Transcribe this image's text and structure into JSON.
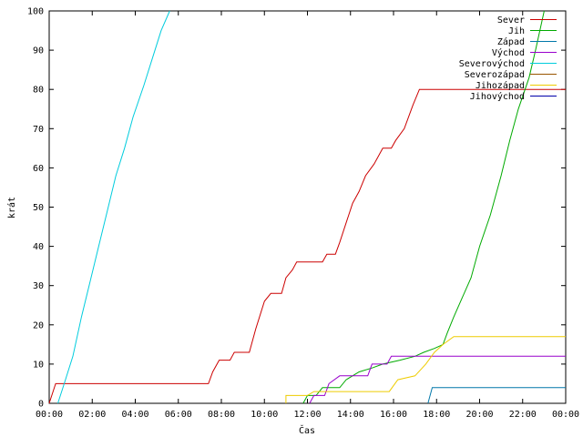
{
  "chart_data": {
    "type": "line",
    "title": "",
    "xlabel": "Čas",
    "ylabel": "krát",
    "xlim": [
      0,
      24
    ],
    "ylim": [
      0,
      100
    ],
    "grid": false,
    "legend_position": "top-right",
    "x_tick_labels": [
      "00:00",
      "02:00",
      "04:00",
      "06:00",
      "08:00",
      "10:00",
      "12:00",
      "14:00",
      "16:00",
      "18:00",
      "20:00",
      "22:00",
      "00:00"
    ],
    "y_tick_labels": [
      "0",
      "10",
      "20",
      "30",
      "40",
      "50",
      "60",
      "70",
      "80",
      "90",
      "100"
    ],
    "series": [
      {
        "name": "Sever",
        "color": "#cc0000",
        "points": [
          [
            0,
            0
          ],
          [
            0.3,
            5
          ],
          [
            7.4,
            5
          ],
          [
            7.6,
            8
          ],
          [
            7.9,
            11
          ],
          [
            8.4,
            11
          ],
          [
            8.6,
            13
          ],
          [
            9.3,
            13
          ],
          [
            9.6,
            19
          ],
          [
            10.0,
            26
          ],
          [
            10.3,
            28
          ],
          [
            10.8,
            28
          ],
          [
            11.0,
            32
          ],
          [
            11.3,
            34
          ],
          [
            11.5,
            36
          ],
          [
            12.7,
            36
          ],
          [
            12.9,
            38
          ],
          [
            13.3,
            38
          ],
          [
            13.5,
            41
          ],
          [
            13.8,
            46
          ],
          [
            14.1,
            51
          ],
          [
            14.4,
            54
          ],
          [
            14.7,
            58
          ],
          [
            15.1,
            61
          ],
          [
            15.5,
            65
          ],
          [
            15.9,
            65
          ],
          [
            16.1,
            67
          ],
          [
            16.5,
            70
          ],
          [
            16.9,
            76
          ],
          [
            17.2,
            80
          ],
          [
            24,
            80
          ]
        ]
      },
      {
        "name": "Jih",
        "color": "#00aa00",
        "points": [
          [
            11.8,
            0
          ],
          [
            12.0,
            2
          ],
          [
            12.4,
            2
          ],
          [
            12.7,
            4
          ],
          [
            13.5,
            4
          ],
          [
            13.8,
            6
          ],
          [
            14.4,
            8
          ],
          [
            15.0,
            9
          ],
          [
            15.5,
            10
          ],
          [
            16.3,
            11
          ],
          [
            17.0,
            12
          ],
          [
            17.4,
            13
          ],
          [
            17.9,
            14
          ],
          [
            18.3,
            15
          ],
          [
            18.5,
            18
          ],
          [
            18.8,
            22
          ],
          [
            19.2,
            27
          ],
          [
            19.6,
            32
          ],
          [
            20.0,
            40
          ],
          [
            20.5,
            48
          ],
          [
            21.0,
            58
          ],
          [
            21.4,
            67
          ],
          [
            21.8,
            75
          ],
          [
            22.3,
            83
          ],
          [
            22.6,
            90
          ],
          [
            23.0,
            100
          ]
        ]
      },
      {
        "name": "Západ",
        "color": "#0077aa",
        "points": [
          [
            17.6,
            0
          ],
          [
            17.8,
            4
          ],
          [
            24,
            4
          ]
        ]
      },
      {
        "name": "Východ",
        "color": "#9900cc",
        "points": [
          [
            12.1,
            0
          ],
          [
            12.3,
            2
          ],
          [
            12.8,
            2
          ],
          [
            13.0,
            5
          ],
          [
            13.5,
            7
          ],
          [
            14.8,
            7
          ],
          [
            15.0,
            10
          ],
          [
            15.7,
            10
          ],
          [
            15.9,
            12
          ],
          [
            24,
            12
          ]
        ]
      },
      {
        "name": "Severovýchod",
        "color": "#00ccdd",
        "points": [
          [
            0.4,
            0
          ],
          [
            0.7,
            5
          ],
          [
            1.1,
            12
          ],
          [
            1.5,
            22
          ],
          [
            1.9,
            31
          ],
          [
            2.3,
            40
          ],
          [
            2.7,
            49
          ],
          [
            3.1,
            58
          ],
          [
            3.5,
            65
          ],
          [
            3.9,
            73
          ],
          [
            4.4,
            81
          ],
          [
            4.8,
            88
          ],
          [
            5.2,
            95
          ],
          [
            5.6,
            100
          ]
        ]
      },
      {
        "name": "Severozápad",
        "color": "#995500",
        "points": []
      },
      {
        "name": "Jihozápad",
        "color": "#eecc00",
        "points": [
          [
            11.0,
            0
          ],
          [
            11.0,
            2
          ],
          [
            12.0,
            2
          ],
          [
            12.3,
            3
          ],
          [
            15.8,
            3
          ],
          [
            16.2,
            6
          ],
          [
            17.0,
            7
          ],
          [
            17.5,
            10
          ],
          [
            17.9,
            13
          ],
          [
            18.3,
            15
          ],
          [
            18.8,
            17
          ],
          [
            24,
            17
          ]
        ]
      },
      {
        "name": "Jihovýchod",
        "color": "#0000aa",
        "points": []
      }
    ]
  }
}
